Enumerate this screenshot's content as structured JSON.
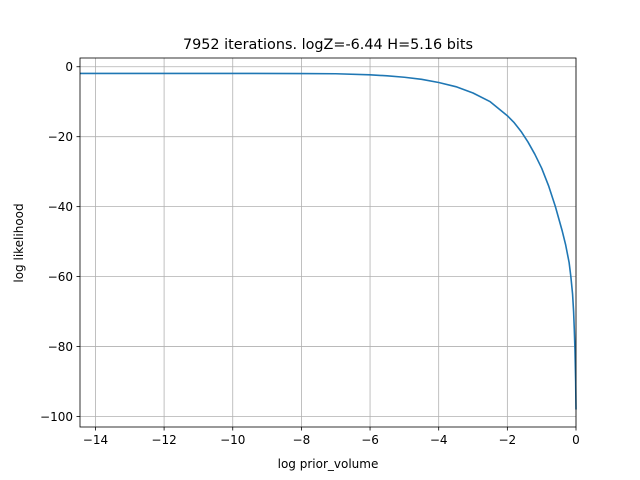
{
  "chart_data": {
    "type": "line",
    "title": "7952 iterations. logZ=-6.44 H=5.16 bits",
    "xlabel": "log prior_volume",
    "ylabel": "log likelihood",
    "xlim": [
      -14.45,
      0.0
    ],
    "ylim": [
      -103.0,
      2.5
    ],
    "xticks": [
      -14,
      -12,
      -10,
      -8,
      -6,
      -4,
      -2,
      0
    ],
    "xtick_labels": [
      "−14",
      "−12",
      "−10",
      "−8",
      "−6",
      "−4",
      "−2",
      "0"
    ],
    "yticks": [
      0,
      -20,
      -40,
      -60,
      -80,
      -100
    ],
    "ytick_labels": [
      "0",
      "−20",
      "−40",
      "−60",
      "−80",
      "−100"
    ],
    "grid": true,
    "legend": "none",
    "series": [
      {
        "color": "#1f77b4",
        "x": [
          -14.45,
          -14.0,
          -12.0,
          -10.0,
          -8.0,
          -7.0,
          -6.0,
          -5.5,
          -5.0,
          -4.5,
          -4.0,
          -3.5,
          -3.0,
          -2.5,
          -2.0,
          -1.8,
          -1.6,
          -1.4,
          -1.2,
          -1.0,
          -0.8,
          -0.6,
          -0.4,
          -0.3,
          -0.2,
          -0.15,
          -0.1,
          -0.07,
          -0.05,
          -0.03,
          -0.01,
          0.0
        ],
        "y": [
          -1.9,
          -1.9,
          -1.9,
          -1.9,
          -1.95,
          -2.0,
          -2.3,
          -2.6,
          -3.0,
          -3.6,
          -4.5,
          -5.7,
          -7.5,
          -10.0,
          -14.0,
          -16.0,
          -18.5,
          -21.5,
          -25.0,
          -29.0,
          -34.0,
          -40.0,
          -47.0,
          -51.0,
          -56.0,
          -60.0,
          -65.0,
          -70.0,
          -75.0,
          -81.0,
          -90.0,
          -98.0
        ]
      }
    ]
  }
}
